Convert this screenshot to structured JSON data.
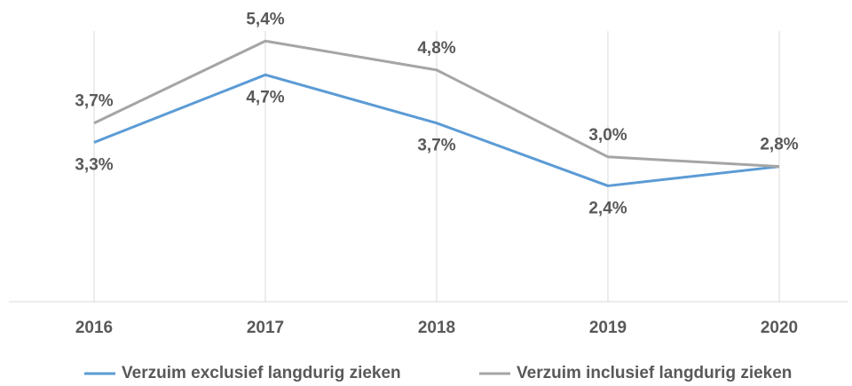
{
  "chart_data": {
    "type": "line",
    "categories": [
      "2016",
      "2017",
      "2018",
      "2019",
      "2020"
    ],
    "series": [
      {
        "name": "Verzuim exclusief langdurig zieken",
        "color": "#5b9bd5",
        "values": [
          3.3,
          4.7,
          3.7,
          2.4,
          2.8
        ],
        "value_labels": [
          "3,3%",
          "4,7%",
          "3,7%",
          "2,4%",
          null
        ]
      },
      {
        "name": "Verzuim inclusief langdurig zieken",
        "color": "#a5a5a5",
        "values": [
          3.7,
          5.4,
          4.8,
          3.0,
          2.8
        ],
        "value_labels": [
          "3,7%",
          "5,4%",
          "4,8%",
          "3,0%",
          "2,8%"
        ]
      }
    ],
    "ylim": [
      0,
      6
    ],
    "grid": true
  }
}
